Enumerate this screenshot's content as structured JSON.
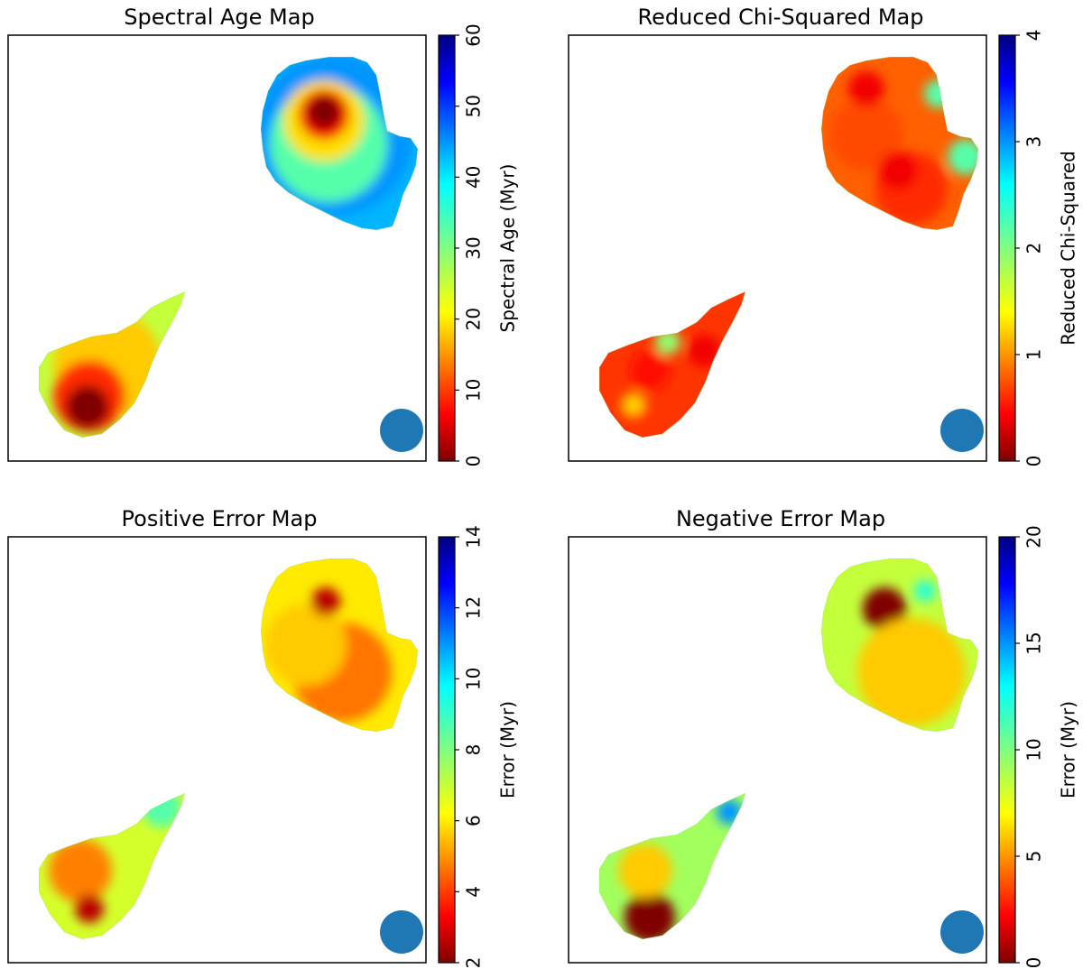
{
  "figure": {
    "panels": [
      {
        "title": "Spectral Age Map",
        "colorbar_label": "Spectral Age (Myr)",
        "colorbar_ticks": [
          "0",
          "10",
          "20",
          "30",
          "40",
          "50",
          "60"
        ]
      },
      {
        "title": "Reduced Chi-Squared Map",
        "colorbar_label": "Reduced Chi-Squared",
        "colorbar_ticks": [
          "0",
          "1",
          "2",
          "3",
          "4"
        ]
      },
      {
        "title": "Positive Error Map",
        "colorbar_label": "Error (Myr)",
        "colorbar_ticks": [
          "2",
          "4",
          "6",
          "8",
          "10",
          "12",
          "14"
        ]
      },
      {
        "title": "Negative Error Map",
        "colorbar_label": "Error (Myr)",
        "colorbar_ticks": [
          "0",
          "5",
          "10",
          "15",
          "20"
        ]
      }
    ],
    "beam_color": "#1f77b4",
    "colormap": "jet_r"
  },
  "chart_data": [
    {
      "type": "heatmap",
      "title": "Spectral Age Map",
      "colorbar": {
        "label": "Spectral Age (Myr)",
        "range": [
          0,
          60
        ],
        "ticks": [
          0,
          10,
          20,
          30,
          40,
          50,
          60
        ],
        "colormap": "jet_r"
      },
      "regions": [
        {
          "name": "north-east lobe",
          "value_center": 0,
          "value_edge": 45
        },
        {
          "name": "south-west lobe",
          "value_center": 0,
          "value_edge": 25
        }
      ]
    },
    {
      "type": "heatmap",
      "title": "Reduced Chi-Squared Map",
      "colorbar": {
        "label": "Reduced Chi-Squared",
        "range": [
          0,
          4
        ],
        "ticks": [
          0,
          1,
          2,
          3,
          4
        ],
        "colormap": "jet_r"
      },
      "regions": [
        {
          "name": "north-east lobe",
          "value_typical": 0.5,
          "value_max": 2.5
        },
        {
          "name": "south-west lobe",
          "value_typical": 0.5,
          "value_max": 2.5
        }
      ]
    },
    {
      "type": "heatmap",
      "title": "Positive Error Map",
      "colorbar": {
        "label": "Error (Myr)",
        "range": [
          2,
          14
        ],
        "ticks": [
          2,
          4,
          6,
          8,
          10,
          12,
          14
        ],
        "colormap": "jet_r"
      },
      "regions": [
        {
          "name": "north-east lobe",
          "value_typical": 5,
          "value_min": 3
        },
        {
          "name": "south-west lobe",
          "value_typical": 5,
          "value_min": 3,
          "value_edge": 9
        }
      ]
    },
    {
      "type": "heatmap",
      "title": "Negative Error Map",
      "colorbar": {
        "label": "Error (Myr)",
        "range": [
          0,
          20
        ],
        "ticks": [
          0,
          5,
          10,
          15,
          20
        ],
        "colormap": "jet_r"
      },
      "regions": [
        {
          "name": "north-east lobe",
          "value_typical": 7,
          "value_min": 0
        },
        {
          "name": "south-west lobe",
          "value_typical": 8,
          "value_min": 0
        }
      ]
    }
  ]
}
